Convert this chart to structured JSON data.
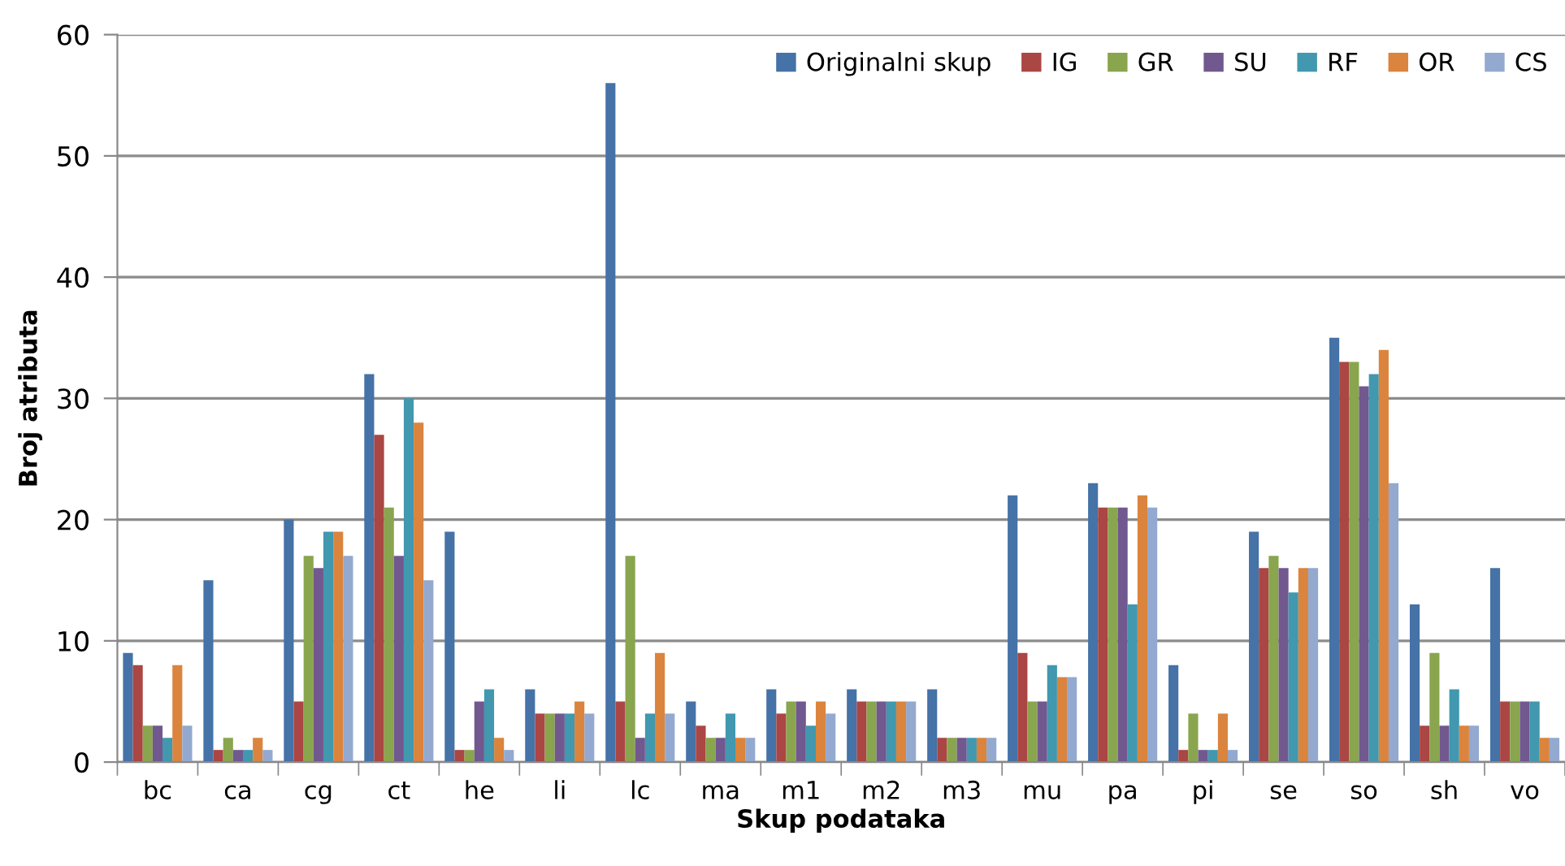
{
  "chart_data": {
    "type": "bar",
    "xlabel": "Skup podataka",
    "ylabel": "Broj atributa",
    "categories": [
      "bc",
      "ca",
      "cg",
      "ct",
      "he",
      "li",
      "lc",
      "ma",
      "m1",
      "m2",
      "m3",
      "mu",
      "pa",
      "pi",
      "se",
      "so",
      "sh",
      "vo"
    ],
    "series": [
      {
        "name": "Originalni skup",
        "color": "#4572a7",
        "values": [
          9,
          15,
          20,
          32,
          19,
          6,
          56,
          5,
          6,
          6,
          6,
          22,
          23,
          8,
          19,
          35,
          13,
          16
        ]
      },
      {
        "name": "IG",
        "color": "#aa4643",
        "values": [
          8,
          1,
          5,
          27,
          1,
          4,
          5,
          3,
          4,
          5,
          2,
          9,
          21,
          1,
          16,
          33,
          3,
          5
        ]
      },
      {
        "name": "GR",
        "color": "#89a54e",
        "values": [
          3,
          2,
          17,
          21,
          1,
          4,
          17,
          2,
          5,
          5,
          2,
          5,
          21,
          4,
          17,
          33,
          9,
          5
        ]
      },
      {
        "name": "SU",
        "color": "#71588f",
        "values": [
          3,
          1,
          16,
          17,
          5,
          4,
          2,
          2,
          5,
          5,
          2,
          5,
          21,
          1,
          16,
          31,
          3,
          5
        ]
      },
      {
        "name": "RF",
        "color": "#4198af",
        "values": [
          2,
          1,
          19,
          30,
          6,
          4,
          4,
          4,
          3,
          5,
          2,
          8,
          13,
          1,
          14,
          32,
          6,
          5
        ]
      },
      {
        "name": "OR",
        "color": "#db843d",
        "values": [
          8,
          2,
          19,
          28,
          2,
          5,
          9,
          2,
          5,
          5,
          2,
          7,
          22,
          4,
          16,
          34,
          3,
          2
        ]
      },
      {
        "name": "CS",
        "color": "#93a9cf",
        "values": [
          3,
          1,
          17,
          15,
          1,
          4,
          4,
          2,
          4,
          5,
          2,
          7,
          21,
          1,
          16,
          23,
          3,
          2
        ]
      }
    ],
    "ylim": [
      0,
      60
    ],
    "yticks": [
      0,
      10,
      20,
      30,
      40,
      50,
      60
    ],
    "grid": "y",
    "legend": "top right"
  }
}
